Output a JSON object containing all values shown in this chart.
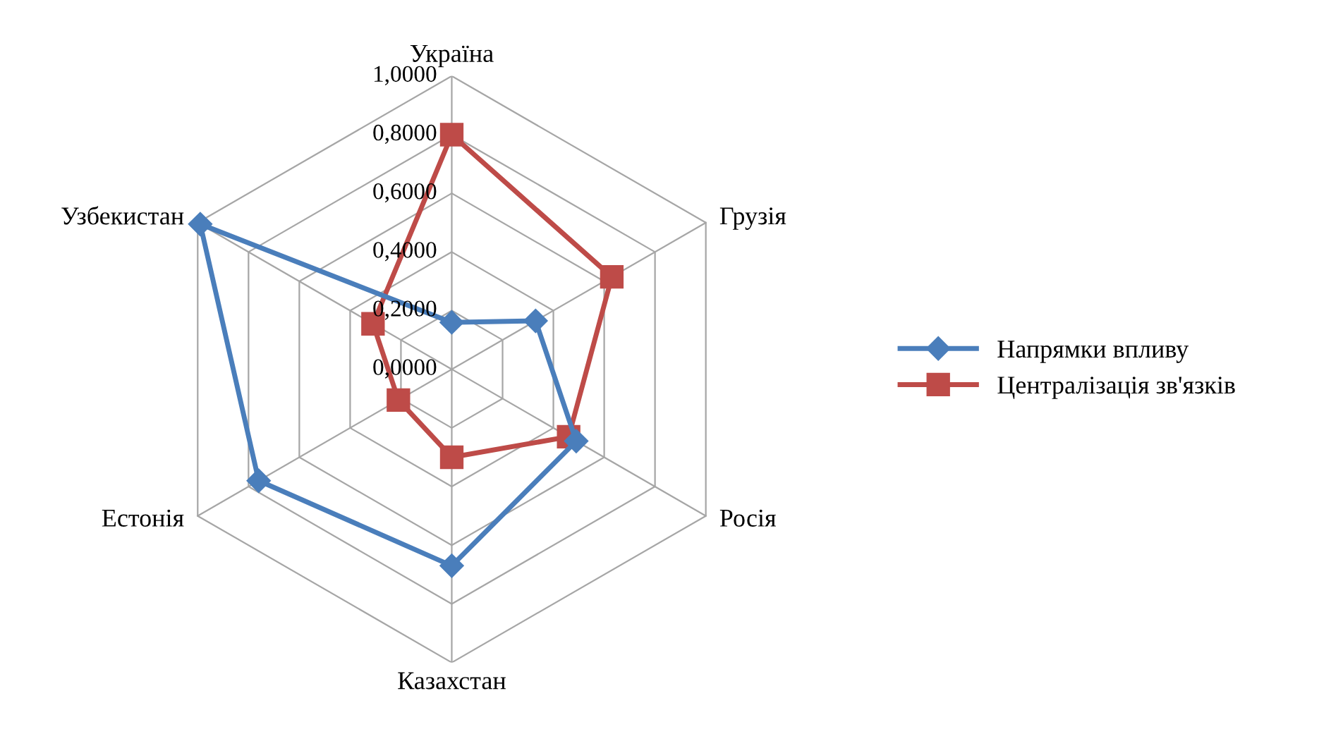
{
  "chart_data": {
    "type": "radar",
    "categories": [
      "Україна",
      "Грузія",
      "Росія",
      "Казахстан",
      "Естонія",
      "Узбекистан"
    ],
    "series": [
      {
        "name": "Напрямки впливу",
        "color": "#4a7ebb",
        "marker": "diamond",
        "values": [
          0.16,
          0.33,
          0.49,
          0.67,
          0.76,
          0.99
        ]
      },
      {
        "name": "Централізація зв'язків",
        "color": "#be4b48",
        "marker": "square",
        "values": [
          0.8,
          0.63,
          0.46,
          0.3,
          0.21,
          0.31
        ]
      }
    ],
    "ylim": [
      0,
      1
    ],
    "yticks": [
      {
        "value": 0,
        "label": "0,0000"
      },
      {
        "value": 0.2,
        "label": "0,2000"
      },
      {
        "value": 0.4,
        "label": "0,4000"
      },
      {
        "value": 0.6,
        "label": "0,6000"
      },
      {
        "value": 0.8,
        "label": "0,8000"
      },
      {
        "value": 1,
        "label": "1,0000"
      }
    ],
    "grid": true,
    "legend": "right"
  }
}
